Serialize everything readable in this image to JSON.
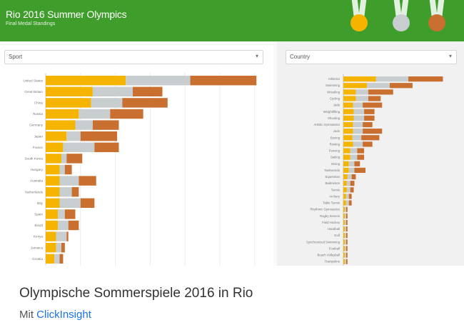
{
  "banner": {
    "title": "Rio 2016 Summer Olympics",
    "subtitle": "Final Medal Standings",
    "medal_icons": [
      "gold-medal-icon",
      "silver-medal-icon",
      "bronze-medal-icon"
    ]
  },
  "colors": {
    "gold": "#f4b400",
    "silver": "#c8cdd0",
    "bronze": "#c96f2f",
    "banner": "#3f9d2c",
    "link": "#1a73e8"
  },
  "left_filter": {
    "label": "Sport",
    "caret": "▾"
  },
  "right_filter": {
    "label": "Country",
    "caret": "▾"
  },
  "footer": {
    "title": "Olympische Sommerspiele 2016 in Rio",
    "by_prefix": "Mit ",
    "by_link": "ClickInsight"
  },
  "chart_data": [
    {
      "type": "bar",
      "orientation": "horizontal",
      "stacked": true,
      "grid": true,
      "categories": [
        "United States",
        "Great Britain",
        "China",
        "Russia",
        "Germany",
        "Japan",
        "France",
        "South Korea",
        "Hungary",
        "Australia",
        "Netherlands",
        "Italy",
        "Spain",
        "Brazil",
        "Kenya",
        "Jamaica",
        "Croatia"
      ],
      "xlim": [
        0,
        125
      ],
      "series": [
        {
          "color": "gold",
          "values": [
            46,
            27,
            26,
            19,
            17,
            12,
            10,
            9,
            8,
            8,
            8,
            8,
            7,
            7,
            6,
            6,
            5
          ]
        },
        {
          "color": "silver",
          "values": [
            37,
            23,
            18,
            18,
            10,
            8,
            18,
            3,
            3,
            11,
            7,
            12,
            4,
            6,
            6,
            3,
            3
          ]
        },
        {
          "color": "bronze",
          "values": [
            38,
            17,
            26,
            19,
            15,
            21,
            14,
            9,
            4,
            10,
            4,
            8,
            6,
            6,
            1,
            2,
            2
          ]
        }
      ]
    },
    {
      "type": "bar",
      "orientation": "horizontal",
      "stacked": true,
      "grid": false,
      "categories": [
        "Athletics",
        "Swimming",
        "Wrestling",
        "Cycling",
        "Judo",
        "Weightlifting",
        "Shooting",
        "Artistic Gymnastics",
        "Judo",
        "Boxing",
        "Rowing",
        "Fencing",
        "Sailing",
        "Diving",
        "Taekwondo",
        "Equestrian",
        "Badminton",
        "Tennis",
        "Archery",
        "Table Tennis",
        "Rhythmic Gymnastics",
        "Rugby Sevens",
        "Field Hockey",
        "Handball",
        "Golf",
        "Synchronized Swimming",
        "Football",
        "Beach Volleyball",
        "Trampoline"
      ],
      "xlim": [
        0,
        160
      ],
      "series": [
        {
          "color": "gold",
          "values": [
            47,
            34,
            18,
            18,
            14,
            15,
            15,
            14,
            14,
            13,
            14,
            10,
            10,
            8,
            8,
            6,
            5,
            5,
            4,
            4,
            2,
            2,
            2,
            2,
            2,
            2,
            2,
            2,
            2
          ]
        },
        {
          "color": "silver",
          "values": [
            47,
            33,
            18,
            18,
            14,
            15,
            15,
            14,
            14,
            13,
            14,
            10,
            10,
            8,
            8,
            6,
            5,
            5,
            4,
            4,
            2,
            2,
            2,
            2,
            2,
            2,
            2,
            2,
            2
          ]
        },
        {
          "color": "bronze",
          "values": [
            50,
            33,
            36,
            18,
            28,
            15,
            15,
            14,
            28,
            26,
            14,
            10,
            10,
            8,
            16,
            6,
            6,
            5,
            4,
            4,
            2,
            2,
            2,
            2,
            2,
            2,
            2,
            2,
            2
          ]
        }
      ]
    }
  ]
}
